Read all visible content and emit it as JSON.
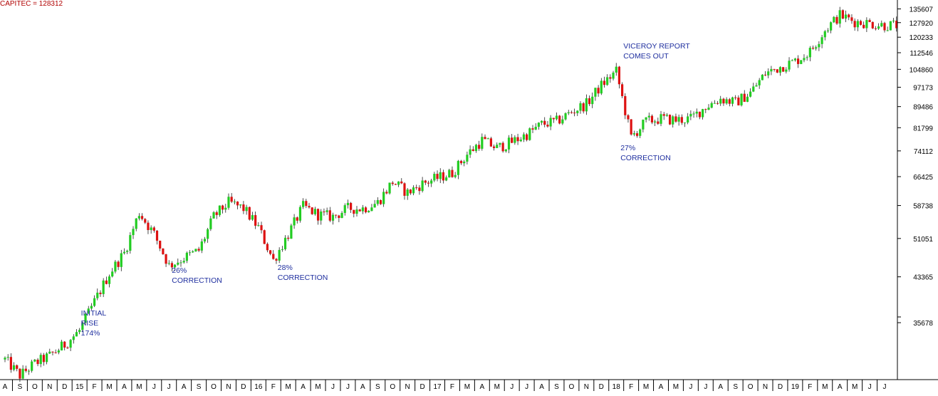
{
  "chart_data": {
    "type": "candlestick",
    "title": "CAPITEC = 128312",
    "y_scale": "log",
    "ylim": [
      28000,
      140000
    ],
    "y_ticks": [
      "135607",
      "127920",
      "120233",
      "112546",
      "104860",
      "97173",
      "89486",
      "81799",
      "74112",
      "66425",
      "58738",
      "51051",
      "43365",
      "35678"
    ],
    "x_ticks": [
      "A",
      "S",
      "O",
      "N",
      "D",
      "15",
      "F",
      "M",
      "A",
      "M",
      "J",
      "J",
      "A",
      "S",
      "O",
      "N",
      "D",
      "16",
      "F",
      "M",
      "A",
      "M",
      "J",
      "J",
      "A",
      "S",
      "O",
      "N",
      "D",
      "17",
      "F",
      "M",
      "A",
      "M",
      "J",
      "J",
      "A",
      "S",
      "O",
      "N",
      "D",
      "18",
      "F",
      "M",
      "A",
      "M",
      "J",
      "J",
      "A",
      "S",
      "O",
      "N",
      "D",
      "19",
      "F",
      "M",
      "A",
      "M",
      "J",
      "J"
    ],
    "x_range": [
      "2014-08",
      "2019-07"
    ],
    "colors": {
      "up": "#22cc22",
      "down": "#dd1111",
      "wick": "#000000",
      "title": "#b00000",
      "annotation": "#1f2f9f"
    },
    "series": [
      {
        "x": [
          "2014-08",
          "2014-09",
          "2014-10",
          "2014-11",
          "2014-12",
          "2015-01",
          "2015-02",
          "2015-03",
          "2015-04",
          "2015-05",
          "2015-06",
          "2015-07",
          "2015-08",
          "2015-09",
          "2015-10",
          "2015-11",
          "2015-12",
          "2016-01",
          "2016-02",
          "2016-03",
          "2016-04",
          "2016-05",
          "2016-06",
          "2016-07",
          "2016-08",
          "2016-09",
          "2016-10",
          "2016-11",
          "2016-12",
          "2017-01",
          "2017-02",
          "2017-03",
          "2017-04",
          "2017-05",
          "2017-06",
          "2017-07",
          "2017-08",
          "2017-09",
          "2017-10",
          "2017-11",
          "2017-12",
          "2018-01",
          "2018-02",
          "2018-03",
          "2018-04",
          "2018-05",
          "2018-06",
          "2018-07",
          "2018-08",
          "2018-09",
          "2018-10",
          "2018-11",
          "2018-12",
          "2019-01",
          "2019-02",
          "2019-03",
          "2019-04",
          "2019-05",
          "2019-06",
          "2019-07"
        ],
        "values": [
          30500,
          28500,
          30000,
          31000,
          32500,
          34500,
          39000,
          44000,
          48000,
          57000,
          52000,
          45500,
          47000,
          48500,
          56000,
          59500,
          58000,
          53500,
          46500,
          52000,
          58500,
          56500,
          56000,
          58000,
          58000,
          59500,
          65000,
          62000,
          64500,
          66000,
          67500,
          73000,
          77500,
          75000,
          77000,
          79500,
          83000,
          84000,
          87500,
          90500,
          98000,
          104000,
          78500,
          84000,
          85000,
          84500,
          85000,
          89500,
          92500,
          91000,
          95000,
          103000,
          106000,
          108500,
          113000,
          124000,
          132000,
          128500,
          127500,
          126500
        ]
      }
    ],
    "annotations": [
      {
        "text": "INITIAL\nRISE\n174%",
        "x": "2015-01",
        "y": 37000
      },
      {
        "text": "26%\nCORRECTION",
        "x": "2015-07",
        "y": 45500
      },
      {
        "text": "28%\nCORRECTION",
        "x": "2016-02",
        "y": 46000
      },
      {
        "text": "VICEROY REPORT\nCOMES OUT",
        "x": "2018-01",
        "y": 108000
      },
      {
        "text": "27%\nCORRECTION",
        "x": "2018-01",
        "y": 79000
      }
    ]
  }
}
